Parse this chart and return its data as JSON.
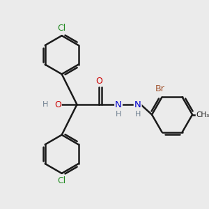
{
  "bg_color": "#ebebeb",
  "bond_color": "#1a1a1a",
  "bond_width": 1.8,
  "atom_colors": {
    "C": "#1a1a1a",
    "H": "#708090",
    "O": "#cc0000",
    "N": "#0000cc",
    "Cl": "#228b22",
    "Br": "#a0522d",
    "CH3": "#1a1a1a"
  },
  "font_size": 9.0,
  "figsize": [
    3.0,
    3.0
  ],
  "dpi": 100,
  "xlim": [
    0,
    10
  ],
  "ylim": [
    0,
    10
  ]
}
